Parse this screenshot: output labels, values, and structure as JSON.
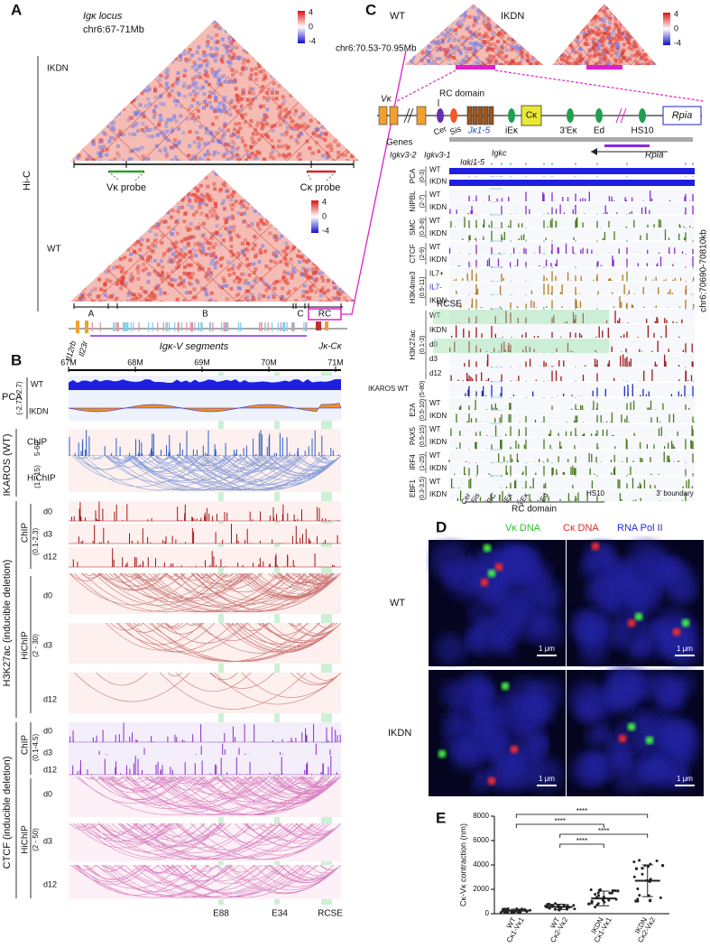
{
  "panel_a": {
    "label": "A",
    "locus": "Igκ locus",
    "region": "chr6:67-71Mb",
    "side_label": "Hi-C",
    "samples": [
      "IKDN",
      "WT"
    ],
    "colorbar": [
      4,
      0,
      -4
    ],
    "probes": [
      "Vκ probe",
      "Cκ probe"
    ],
    "domains": [
      "A",
      "B",
      "C",
      "RC"
    ],
    "genes": [
      "Il12rb",
      "Il23r"
    ],
    "segments": "Igκ-V segments",
    "jc": "Jκ-Cκ"
  },
  "panel_b": {
    "label": "B",
    "axis": [
      "67M",
      "68M",
      "69M",
      "70M",
      "71M"
    ],
    "pca": {
      "name": "PCA",
      "range": "(-2.7 - 2.7)",
      "samples": [
        "WT",
        "IKDN"
      ]
    },
    "ikaros": {
      "name": "IKAROS (WT)",
      "chip": "ChIP",
      "chip_range": "5-60",
      "hichip": "HiChIP",
      "hichip_range": "(1 - 15)"
    },
    "h3k27ac": {
      "name": "H3K27ac (inducible deletion)",
      "chip": "ChIP",
      "chip_range": "(0.1-2.3)",
      "hichip": "HiChIP",
      "hichip_range": "(2 - 30)",
      "timepoints": [
        "d0",
        "d3",
        "d12"
      ]
    },
    "ctcf": {
      "name": "CTCF (inducible deletion)",
      "chip": "ChIP",
      "chip_range": "(0.1-4.5)",
      "hichip": "HiChIP",
      "hichip_range": "(2 - 50)",
      "timepoints": [
        "d0",
        "d3",
        "d12"
      ]
    },
    "markers": [
      "E88",
      "E34",
      "RCSE"
    ]
  },
  "panel_c": {
    "label": "C",
    "samples": [
      "WT",
      "IKDN"
    ],
    "region": "chr6:70.53-70.95Mb",
    "colorbar": [
      4,
      0,
      -4
    ],
    "diagram": {
      "vk": "Vκ",
      "rc_domain": "RC domain",
      "cer": "Cer",
      "sis": "Sis",
      "jk": "Jκ1-5",
      "iek": "iEκ",
      "ck": "Cκ",
      "e3": "3'Eκ",
      "ed": "Ed",
      "hs10": "HS10",
      "rpia": "Rpia"
    },
    "genes": {
      "title": "Genes",
      "names": [
        "Igkv3-2",
        "Igkv3-1",
        "Igkj1-5",
        "Igkc",
        "Rpia"
      ]
    },
    "tracks": [
      {
        "name": "PCA",
        "range": "(0-3)",
        "samples": [
          "WT",
          "IKDN"
        ]
      },
      {
        "name": "NIPBL",
        "range": "(2-7)",
        "samples": [
          "WT",
          "IKDN"
        ]
      },
      {
        "name": "SMC",
        "range": "(0.3-8)",
        "samples": [
          "WT",
          "IKDN"
        ]
      },
      {
        "name": "CTCF",
        "range": "(2-9)",
        "samples": [
          "WT",
          "IKDN"
        ]
      },
      {
        "name": "H3K4me3",
        "range": "(0.5-11)",
        "samples": [
          "IL7+",
          "IL7-",
          "IKDN"
        ]
      },
      {
        "name": "H3K27ac",
        "range": "(0.1-3)",
        "samples": [
          "WT",
          "IKDN",
          "d0",
          "d3",
          "d12"
        ],
        "note": "RCSE"
      },
      {
        "name": "IKAROS WT",
        "range": "(5-80)",
        "samples": []
      },
      {
        "name": "E2A",
        "range": "(0.5-10)",
        "samples": [
          "WT",
          "IKDN"
        ]
      },
      {
        "name": "PAX5",
        "range": "(0.5-15)",
        "samples": [
          "WT",
          "IKDN"
        ]
      },
      {
        "name": "IRF4",
        "range": "(1-25)",
        "samples": [
          "WT",
          "IKDN"
        ]
      },
      {
        "name": "EBF1",
        "range": "(0.3-3.5)",
        "samples": [
          "WT",
          "IKDN"
        ]
      }
    ],
    "bottom": [
      "Cer",
      "Sis",
      "RC",
      "iEκ",
      "3'Eκ",
      "Ed",
      "HS10",
      "3' boundary"
    ],
    "bottom_title": "RC domain",
    "side": "chr6:70690-70810kb"
  },
  "panel_d": {
    "label": "D",
    "legend": [
      {
        "text": "Vκ DNA",
        "color": "#2ec42e"
      },
      {
        "text": "Cκ DNA",
        "color": "#e02828"
      },
      {
        "text": "RNA Pol II",
        "color": "#2a2ae0"
      }
    ],
    "rows": [
      "WT",
      "IKDN"
    ],
    "scale": "1 μm"
  },
  "chart_data": {
    "type": "dot",
    "label": "E",
    "y_label": "Cκ-Vκ contraction (nm)",
    "groups": [
      "WT",
      "WT",
      "IKDN",
      "IKDN"
    ],
    "categories": [
      "Cκ1-Vκ1",
      "Cκ2-Vκ2",
      "Cκ1-Vκ1",
      "Cκ2-Vκ2"
    ],
    "values": [
      250,
      560,
      1250,
      2700
    ],
    "errors": [
      120,
      220,
      600,
      1300
    ],
    "color": "#222222",
    "ylim": [
      0,
      8000
    ],
    "yticks": [
      0,
      2000,
      4000,
      6000,
      8000
    ],
    "comparisons": [
      {
        "pair": [
          0,
          3
        ],
        "label": "****"
      },
      {
        "pair": [
          0,
          2
        ],
        "label": "****"
      },
      {
        "pair": [
          1,
          3
        ],
        "label": "****"
      },
      {
        "pair": [
          1,
          2
        ],
        "label": "****"
      }
    ]
  }
}
